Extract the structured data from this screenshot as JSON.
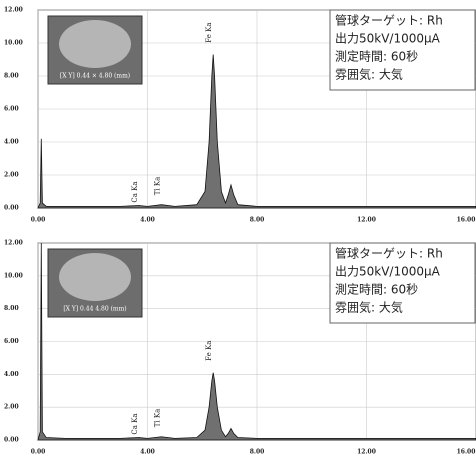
{
  "chart_data": [
    {
      "type": "area",
      "color": "#707070",
      "inset_caption": "[X Y] 0.44 × 4.80 (mm)",
      "info": [
        "管球ターゲット: Rh",
        "出力50kV/1000μA",
        "測定時間: 60秒",
        "雰囲気: 大気"
      ],
      "annotations": [
        "Ca Ka",
        "Ti Ka",
        "Fe Ka"
      ],
      "x": [
        0,
        0.08,
        0.12,
        0.16,
        0.3,
        1,
        2,
        3,
        3.69,
        4,
        4.51,
        5,
        5.8,
        6.1,
        6.25,
        6.35,
        6.4,
        6.45,
        6.55,
        6.7,
        6.85,
        6.95,
        7.05,
        7.15,
        7.3,
        8,
        10,
        12,
        14,
        16
      ],
      "values": [
        0,
        0.3,
        4.2,
        0.3,
        0.1,
        0.1,
        0.1,
        0.1,
        0.15,
        0.1,
        0.2,
        0.1,
        0.2,
        1,
        4,
        8,
        9.3,
        8,
        4,
        1,
        0.3,
        0.8,
        1.4,
        0.8,
        0.2,
        0.1,
        0.1,
        0.1,
        0.1,
        0.1
      ],
      "xlim": [
        0,
        16
      ],
      "ylim": [
        0,
        12
      ],
      "xticks": [
        {
          "value": 0,
          "label": "0.00"
        },
        {
          "value": 4,
          "label": "4.00"
        },
        {
          "value": 8,
          "label": "8.00"
        },
        {
          "value": 12,
          "label": "12.00"
        },
        {
          "value": 16,
          "label": "16.00"
        }
      ],
      "yticks": [
        {
          "value": 0,
          "label": "0.00"
        },
        {
          "value": 2,
          "label": "2.00"
        },
        {
          "value": 4,
          "label": "4.00"
        },
        {
          "value": 6,
          "label": "6.00"
        },
        {
          "value": 8,
          "label": "8.00"
        },
        {
          "value": 10,
          "label": "10.00"
        },
        {
          "value": 12,
          "label": "12.00"
        }
      ],
      "grid": true
    },
    {
      "type": "area",
      "color": "#707070",
      "inset_caption": "[X Y] 0.44 4.80 (mm)",
      "info": [
        "管球ターゲット: Rh",
        "出力50kV/1000μA",
        "測定時間: 60秒",
        "雰囲気: 大気"
      ],
      "annotations": [
        "Ca Ka",
        "Ti Ka",
        "Fe Ka"
      ],
      "x": [
        0,
        0.08,
        0.12,
        0.16,
        0.3,
        1,
        2,
        3,
        3.69,
        4,
        4.51,
        5,
        5.8,
        6.1,
        6.25,
        6.35,
        6.4,
        6.45,
        6.55,
        6.7,
        6.85,
        6.95,
        7.05,
        7.15,
        7.3,
        8,
        10,
        12,
        14,
        16
      ],
      "values": [
        0,
        0.5,
        12,
        0.5,
        0.15,
        0.1,
        0.1,
        0.1,
        0.15,
        0.1,
        0.2,
        0.1,
        0.15,
        0.6,
        2,
        3.6,
        4.1,
        3.6,
        2,
        0.6,
        0.2,
        0.4,
        0.7,
        0.4,
        0.15,
        0.1,
        0.1,
        0.1,
        0.1,
        0.1
      ],
      "xlim": [
        0,
        16
      ],
      "ylim": [
        0,
        12
      ],
      "xticks": [
        {
          "value": 0,
          "label": "0.00"
        },
        {
          "value": 4,
          "label": "4.00"
        },
        {
          "value": 8,
          "label": "8.00"
        },
        {
          "value": 12,
          "label": "12.00"
        },
        {
          "value": 16,
          "label": "16.00"
        }
      ],
      "yticks": [
        {
          "value": 0,
          "label": "0.00"
        },
        {
          "value": 2,
          "label": "2.00"
        },
        {
          "value": 4,
          "label": "4.00"
        },
        {
          "value": 6,
          "label": "6.00"
        },
        {
          "value": 8,
          "label": "8.00"
        },
        {
          "value": 10,
          "label": "10.00"
        },
        {
          "value": 12,
          "label": "12.00"
        }
      ],
      "grid": true
    }
  ]
}
